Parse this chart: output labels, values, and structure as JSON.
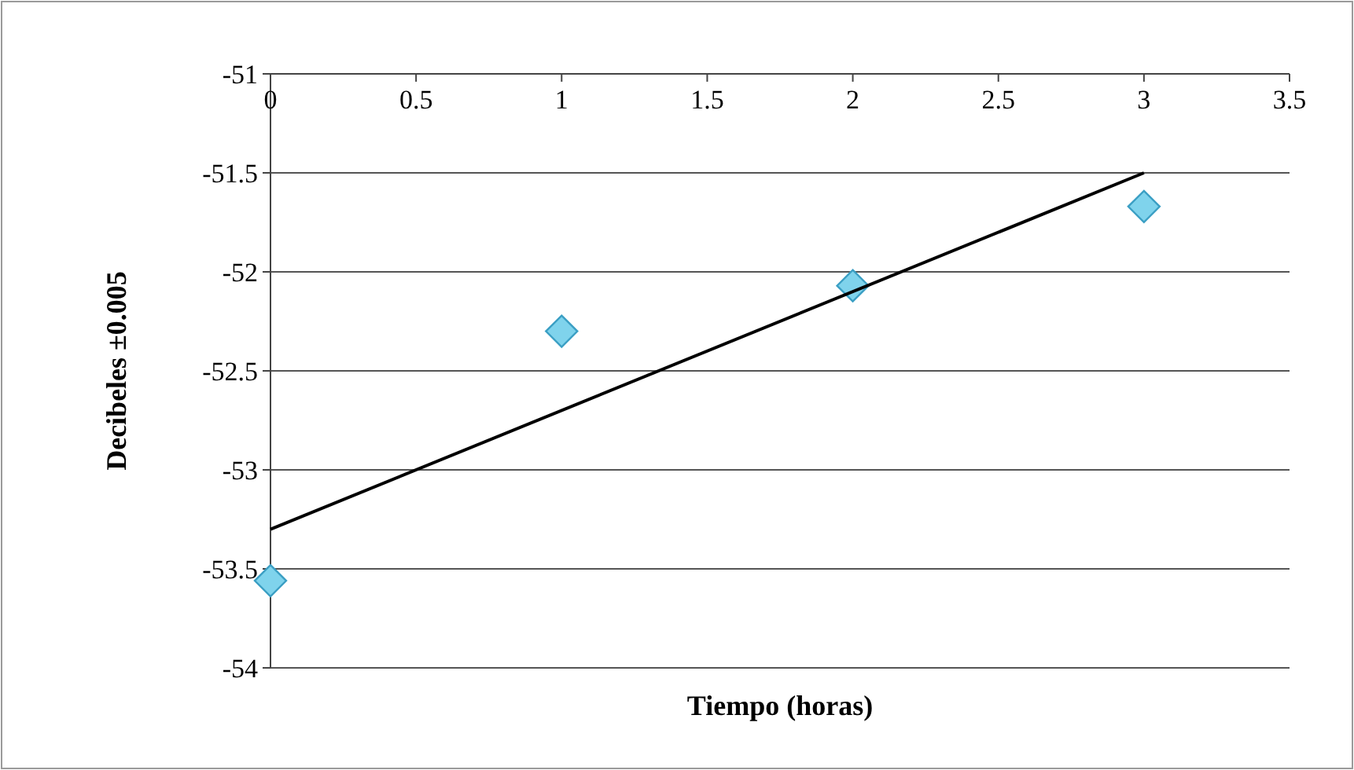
{
  "chart_data": {
    "type": "scatter",
    "xlabel": "Tiempo (horas)",
    "ylabel": "Decibeles ±0.005",
    "xlim": [
      0,
      3.5
    ],
    "xticks": [
      0,
      0.5,
      1,
      1.5,
      2,
      2.5,
      3,
      3.5
    ],
    "ylim": [
      -54,
      -51
    ],
    "yticks": [
      -54,
      -53.5,
      -53,
      -52.5,
      -52,
      -51.5,
      -51
    ],
    "grid": "y",
    "series": [
      {
        "color": "#7fd3ec",
        "x": [
          0,
          1,
          2,
          3
        ],
        "values": [
          -53.56,
          -52.3,
          -52.07,
          -51.67
        ],
        "marker": "diamond"
      },
      {
        "type": "line",
        "color": "#000000",
        "x": [
          0,
          3
        ],
        "values": [
          -53.3,
          -51.5
        ],
        "marker": "none",
        "line_style": "solid"
      }
    ]
  }
}
